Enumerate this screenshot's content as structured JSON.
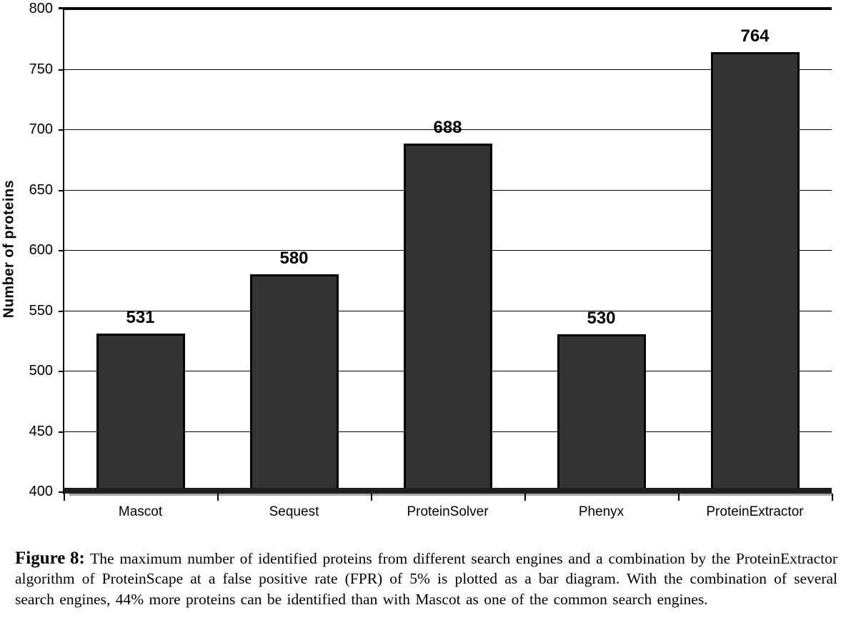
{
  "chart_data": {
    "type": "bar",
    "categories": [
      "Mascot",
      "Sequest",
      "ProteinSolver",
      "Phenyx",
      "ProteinExtractor"
    ],
    "values": [
      531,
      580,
      688,
      530,
      764
    ],
    "data_labels": [
      "531",
      "580",
      "688",
      "530",
      "764"
    ],
    "title": "",
    "xlabel": "",
    "ylabel": "Number of proteins",
    "ylim": [
      400,
      800
    ],
    "yticks": [
      400,
      450,
      500,
      550,
      600,
      650,
      700,
      750,
      800
    ],
    "grid": true,
    "legend": "none",
    "bar_color": "#333333",
    "bar_border_color": "#000000",
    "axis_color": "#000000"
  },
  "caption": {
    "label": "Figure 8:",
    "text": "The maximum number of identified proteins from different search engines and a combination by the ProteinExtractor algorithm of ProteinScape at a false positive rate (FPR) of 5% is plotted as a bar diagram. With the combination of several search engines, 44% more proteins can be identified than with Mascot as one of the common search engines."
  }
}
